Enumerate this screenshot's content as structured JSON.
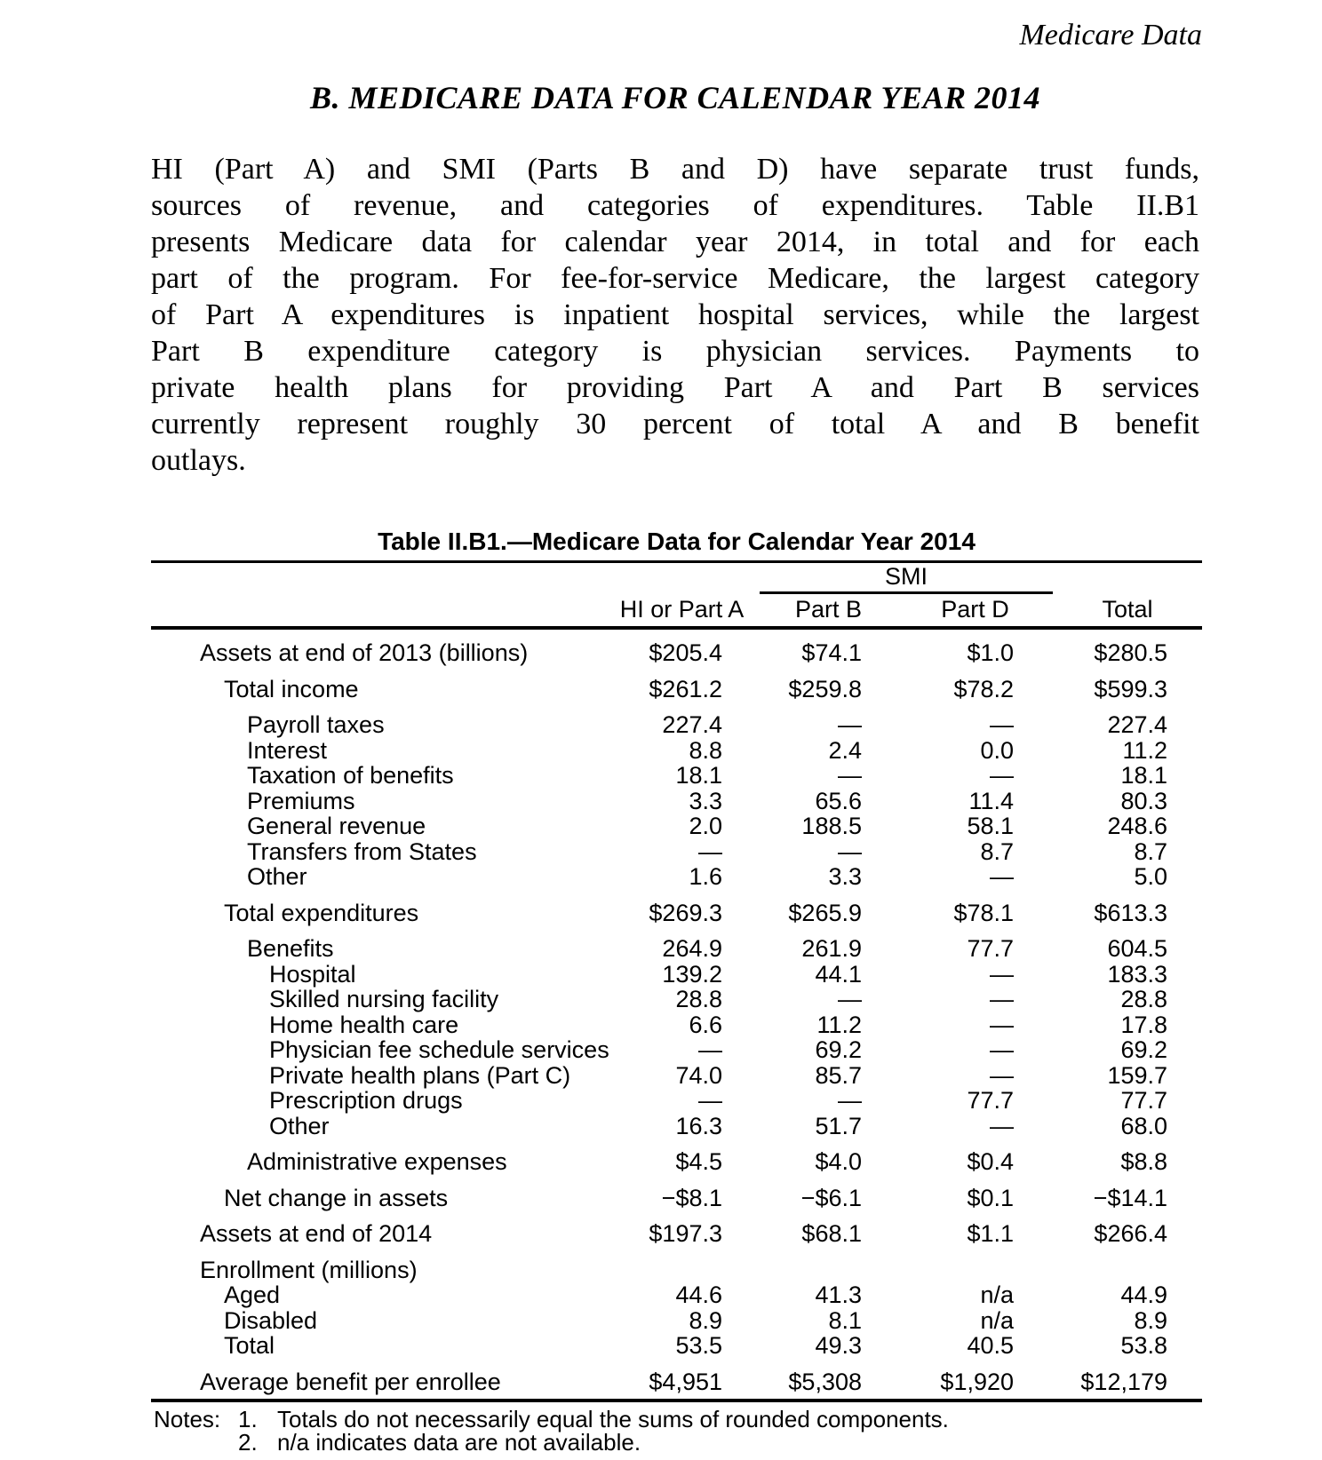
{
  "page": {
    "running_header": "Medicare Data",
    "section_heading": "B. MEDICARE DATA FOR CALENDAR YEAR 2014",
    "paragraph_lines": [
      "HI (Part A) and SMI (Parts B and D) have separate trust funds,",
      "sources of revenue, and categories of expenditures. Table II.B1",
      "presents Medicare data for calendar year 2014, in total and for each",
      "part of the program. For fee-for-service Medicare, the largest category",
      "of Part A expenditures is inpatient hospital services, while the largest",
      "Part B expenditure category is physician services. Payments to",
      "private health plans for providing Part A and Part B services",
      "currently represent roughly 30 percent of total A and B benefit",
      "outlays."
    ]
  },
  "table": {
    "title": "Table II.B1.—Medicare Data for Calendar Year 2014",
    "group_header": "SMI",
    "columns": [
      "HI or Part A",
      "Part B",
      "Part D",
      "Total"
    ],
    "rows": [
      {
        "label": "Assets at end of 2013 (billions)",
        "indent": 1,
        "gap": true,
        "values": [
          "$205.4",
          "$74.1",
          "$1.0",
          "$280.5"
        ]
      },
      {
        "label": "Total income",
        "indent": 2,
        "gap": true,
        "values": [
          "$261.2",
          "$259.8",
          "$78.2",
          "$599.3"
        ]
      },
      {
        "label": "Payroll taxes",
        "indent": 3,
        "gap": true,
        "values": [
          "227.4",
          "—",
          "—",
          "227.4"
        ]
      },
      {
        "label": "Interest",
        "indent": 3,
        "gap": false,
        "values": [
          "8.8",
          "2.4",
          "0.0",
          "11.2"
        ]
      },
      {
        "label": "Taxation of benefits",
        "indent": 3,
        "gap": false,
        "values": [
          "18.1",
          "—",
          "—",
          "18.1"
        ]
      },
      {
        "label": "Premiums",
        "indent": 3,
        "gap": false,
        "values": [
          "3.3",
          "65.6",
          "11.4",
          "80.3"
        ]
      },
      {
        "label": "General revenue",
        "indent": 3,
        "gap": false,
        "values": [
          "2.0",
          "188.5",
          "58.1",
          "248.6"
        ]
      },
      {
        "label": "Transfers from States",
        "indent": 3,
        "gap": false,
        "values": [
          "—",
          "—",
          "8.7",
          "8.7"
        ]
      },
      {
        "label": "Other",
        "indent": 3,
        "gap": false,
        "values": [
          "1.6",
          "3.3",
          "—",
          "5.0"
        ]
      },
      {
        "label": "Total expenditures",
        "indent": 2,
        "gap": true,
        "values": [
          "$269.3",
          "$265.9",
          "$78.1",
          "$613.3"
        ]
      },
      {
        "label": "Benefits",
        "indent": 3,
        "gap": true,
        "values": [
          "264.9",
          "261.9",
          "77.7",
          "604.5"
        ]
      },
      {
        "label": "Hospital",
        "indent": 4,
        "gap": false,
        "values": [
          "139.2",
          "44.1",
          "—",
          "183.3"
        ]
      },
      {
        "label": "Skilled nursing facility",
        "indent": 4,
        "gap": false,
        "values": [
          "28.8",
          "—",
          "—",
          "28.8"
        ]
      },
      {
        "label": "Home health care",
        "indent": 4,
        "gap": false,
        "values": [
          "6.6",
          "11.2",
          "—",
          "17.8"
        ]
      },
      {
        "label": "Physician fee schedule services",
        "indent": 4,
        "gap": false,
        "values": [
          "—",
          "69.2",
          "—",
          "69.2"
        ]
      },
      {
        "label": "Private health plans (Part C)",
        "indent": 4,
        "gap": false,
        "values": [
          "74.0",
          "85.7",
          "—",
          "159.7"
        ]
      },
      {
        "label": "Prescription drugs",
        "indent": 4,
        "gap": false,
        "values": [
          "—",
          "—",
          "77.7",
          "77.7"
        ]
      },
      {
        "label": "Other",
        "indent": 4,
        "gap": false,
        "values": [
          "16.3",
          "51.7",
          "—",
          "68.0"
        ]
      },
      {
        "label": "Administrative expenses",
        "indent": 3,
        "gap": true,
        "values": [
          "$4.5",
          "$4.0",
          "$0.4",
          "$8.8"
        ]
      },
      {
        "label": "Net change in assets",
        "indent": 2,
        "gap": true,
        "values": [
          "−$8.1",
          "−$6.1",
          "$0.1",
          "−$14.1"
        ]
      },
      {
        "label": "Assets at end of 2014",
        "indent": 1,
        "gap": true,
        "values": [
          "$197.3",
          "$68.1",
          "$1.1",
          "$266.4"
        ]
      },
      {
        "label": "Enrollment (millions)",
        "indent": 1,
        "gap": true,
        "values": [
          "",
          "",
          "",
          ""
        ]
      },
      {
        "label": "Aged",
        "indent": 2,
        "gap": false,
        "values": [
          "44.6",
          "41.3",
          "n/a",
          "44.9"
        ]
      },
      {
        "label": "Disabled",
        "indent": 2,
        "gap": false,
        "values": [
          "8.9",
          "8.1",
          "n/a",
          "8.9"
        ]
      },
      {
        "label": "Total",
        "indent": 2,
        "gap": false,
        "values": [
          "53.5",
          "49.3",
          "40.5",
          "53.8"
        ]
      },
      {
        "label": "Average benefit per enrollee",
        "indent": 1,
        "gap": true,
        "values": [
          "$4,951",
          "$5,308",
          "$1,920",
          "$12,179"
        ]
      }
    ]
  },
  "notes": {
    "label": "Notes:",
    "items": [
      {
        "num": "1.",
        "text": "Totals do not necessarily equal the sums of rounded components."
      },
      {
        "num": "2.",
        "text": "n/a indicates data are not available."
      }
    ]
  }
}
